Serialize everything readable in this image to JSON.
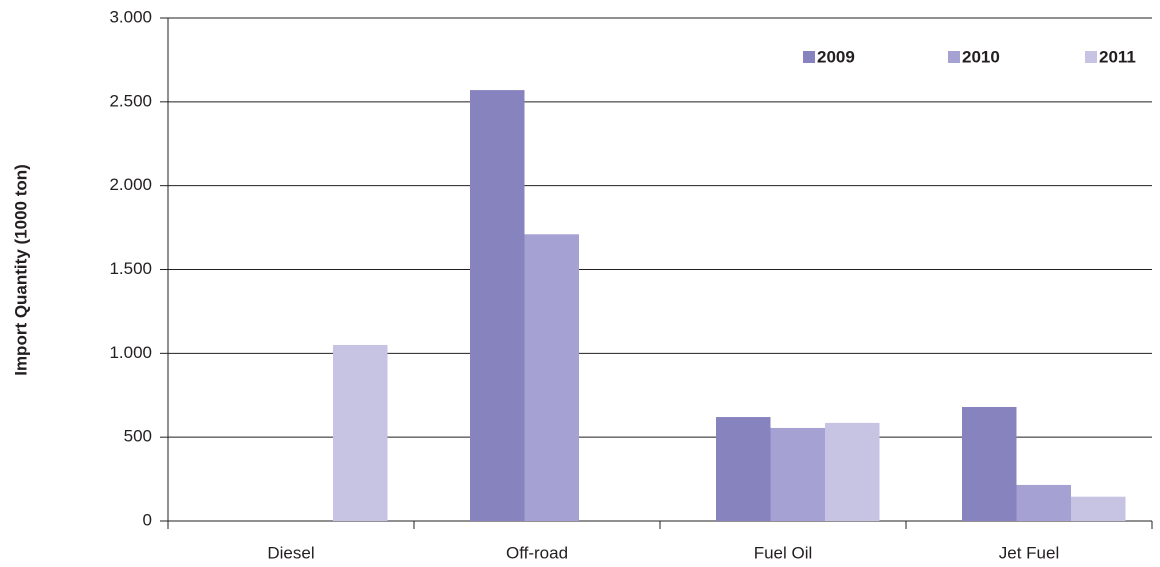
{
  "chart_data": {
    "type": "bar",
    "y_label": "Import Quantity (1000 ton)",
    "categories": [
      "Diesel",
      "Off-road",
      "Fuel Oil",
      "Jet Fuel"
    ],
    "series": [
      {
        "name": "2009",
        "color": "#8783bf",
        "values": [
          0,
          2570,
          620,
          680
        ]
      },
      {
        "name": "2010",
        "color": "#a6a1d3",
        "values": [
          0,
          1710,
          555,
          215
        ]
      },
      {
        "name": "2011",
        "color": "#c7c3e3",
        "values": [
          1050,
          0,
          585,
          145
        ]
      }
    ],
    "ylim": [
      0,
      3000
    ],
    "yticks": [
      0,
      500,
      {
        "value": 1000,
        "label": "1.000"
      },
      {
        "value": 1500,
        "label": "1.500"
      },
      {
        "value": 2000,
        "label": "2.000"
      },
      {
        "value": 2500,
        "label": "2.500"
      },
      {
        "value": 3000,
        "label": "3.000"
      }
    ],
    "grid": true,
    "legend": "upper right"
  }
}
